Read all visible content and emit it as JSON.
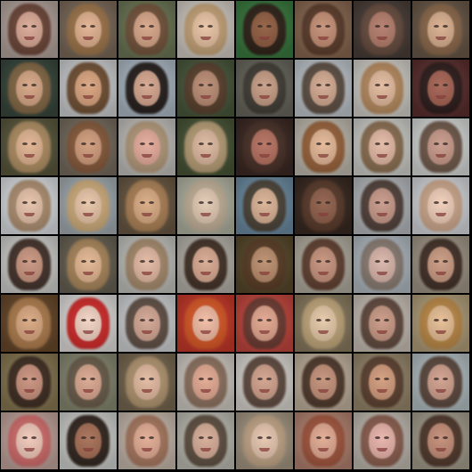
{
  "grid": {
    "rows": 8,
    "cols": 8,
    "tiles": [
      {
        "bg": "#b9a9a1",
        "hair": "#6b4133",
        "skin": "#d9a794"
      },
      {
        "bg": "#7f6e5c",
        "hair": "#a2774a",
        "skin": "#e1b08d"
      },
      {
        "bg": "#6f7a58",
        "hair": "#75533a",
        "skin": "#d6a486"
      },
      {
        "bg": "#d8d2c9",
        "hair": "#c9a476",
        "skin": "#e8c2a2"
      },
      {
        "bg": "#3b7d41",
        "hair": "#2d1d15",
        "skin": "#8e5a3d"
      },
      {
        "bg": "#8c6b53",
        "hair": "#5a3a28",
        "skin": "#c48d73"
      },
      {
        "bg": "#4c403a",
        "hair": "#6a4d3f",
        "skin": "#b27a68"
      },
      {
        "bg": "#6c5b4a",
        "hair": "#8f6a4b",
        "skin": "#d8ad8c"
      },
      {
        "bg": "#3a4a3e",
        "hair": "#8a6a46",
        "skin": "#d5a482"
      },
      {
        "bg": "#d4d6d8",
        "hair": "#6e4a2c",
        "skin": "#d9a27c"
      },
      {
        "bg": "#b3c0cc",
        "hair": "#1e1714",
        "skin": "#d4a48c"
      },
      {
        "bg": "#4b5a3e",
        "hair": "#5b3f2c",
        "skin": "#b98a71"
      },
      {
        "bg": "#6a6a60",
        "hair": "#3f3a33",
        "skin": "#c59b82"
      },
      {
        "bg": "#c6cdd3",
        "hair": "#5a4a3d",
        "skin": "#d2a88f"
      },
      {
        "bg": "#d9d6cf",
        "hair": "#b98a5b",
        "skin": "#e2b99c"
      },
      {
        "bg": "#5e3030",
        "hair": "#2a1b1a",
        "skin": "#a35f4f"
      },
      {
        "bg": "#5c5a3e",
        "hair": "#b89467",
        "skin": "#e0b28f"
      },
      {
        "bg": "#7a6f61",
        "hair": "#8a5a3a",
        "skin": "#d09a79"
      },
      {
        "bg": "#c9c7c2",
        "hair": "#b79b7a",
        "skin": "#e4a999"
      },
      {
        "bg": "#4a5738",
        "hair": "#c2a67c",
        "skin": "#dcb79d"
      },
      {
        "bg": "#3e2a25",
        "hair": "#4a3127",
        "skin": "#b36d5c"
      },
      {
        "bg": "#c7c1b5",
        "hair": "#9a6035",
        "skin": "#e3b694"
      },
      {
        "bg": "#d6d7d2",
        "hair": "#8b6c4d",
        "skin": "#e3b7a3"
      },
      {
        "bg": "#dfe2e0",
        "hair": "#6c5344",
        "skin": "#c79888"
      },
      {
        "bg": "#e3e7ea",
        "hair": "#b08e6d",
        "skin": "#e6c1a7"
      },
      {
        "bg": "#a9b2b7",
        "hair": "#d6b07a",
        "skin": "#e8c4a6"
      },
      {
        "bg": "#6d5b45",
        "hair": "#b48658",
        "skin": "#d8a981"
      },
      {
        "bg": "#b7b9a7",
        "hair": "#c7b49b",
        "skin": "#e2c9b2"
      },
      {
        "bg": "#6f8fa6",
        "hair": "#4b4033",
        "skin": "#d8b092"
      },
      {
        "bg": "#3a2a22",
        "hair": "#5b3b2a",
        "skin": "#8d5c47"
      },
      {
        "bg": "#bcc0c3",
        "hair": "#4d3b33",
        "skin": "#c69787"
      },
      {
        "bg": "#dcdfe3",
        "hair": "#d2a98b",
        "skin": "#f0cdb8"
      },
      {
        "bg": "#d7d8d4",
        "hair": "#3d2a22",
        "skin": "#c8937d"
      },
      {
        "bg": "#6b6455",
        "hair": "#b18b5d",
        "skin": "#e2b58f"
      },
      {
        "bg": "#c8c8c4",
        "hair": "#a98a6a",
        "skin": "#e2b7a0"
      },
      {
        "bg": "#bcb7af",
        "hair": "#3d2b20",
        "skin": "#d7a78e"
      },
      {
        "bg": "#5a4a2c",
        "hair": "#5a3c24",
        "skin": "#b98b6a"
      },
      {
        "bg": "#b8b2a5",
        "hair": "#5d3a2a",
        "skin": "#c4907a"
      },
      {
        "bg": "#b7c0c8",
        "hair": "#8a7b70",
        "skin": "#d8b3a7"
      },
      {
        "bg": "#a69b8b",
        "hair": "#3d2b22",
        "skin": "#c8987f"
      },
      {
        "bg": "#6b4a2b",
        "hair": "#b5814f",
        "skin": "#d9a67e"
      },
      {
        "bg": "#e7e5e2",
        "hair": "#d52020",
        "skin": "#f2d2c2"
      },
      {
        "bg": "#d7d9dc",
        "hair": "#5c4a3f",
        "skin": "#d2a491"
      },
      {
        "bg": "#cc3a2a",
        "hair": "#e05a25",
        "skin": "#f1b9a1"
      },
      {
        "bg": "#c8493f",
        "hair": "#6a3b31",
        "skin": "#e1a48c"
      },
      {
        "bg": "#8d7e62",
        "hair": "#c9ad7f",
        "skin": "#e5c7a6"
      },
      {
        "bg": "#cfc7bd",
        "hair": "#5d4438",
        "skin": "#c89782"
      },
      {
        "bg": "#b7a37e",
        "hair": "#c08a45",
        "skin": "#e5bc91"
      },
      {
        "bg": "#8b7a54",
        "hair": "#3b291f",
        "skin": "#c98f7b"
      },
      {
        "bg": "#8a8c74",
        "hair": "#6a5b49",
        "skin": "#d9a58d"
      },
      {
        "bg": "#7a6a52",
        "hair": "#b99b74",
        "skin": "#e2b89e"
      },
      {
        "bg": "#d7d1c9",
        "hair": "#8c6f5b",
        "skin": "#e2a78f"
      },
      {
        "bg": "#e2ddd7",
        "hair": "#5b4539",
        "skin": "#d1a08a"
      },
      {
        "bg": "#c7b7a3",
        "hair": "#4a3326",
        "skin": "#c38f77"
      },
      {
        "bg": "#9a8a6e",
        "hair": "#5b3e2d",
        "skin": "#d29a7a"
      },
      {
        "bg": "#b9c6c9",
        "hair": "#594337",
        "skin": "#cf9e8b"
      },
      {
        "bg": "#c7a9a0",
        "hair": "#d56a6a",
        "skin": "#f0c7b8"
      },
      {
        "bg": "#d6d8d4",
        "hair": "#2a1c15",
        "skin": "#a56c52"
      },
      {
        "bg": "#cdbfb2",
        "hair": "#a9765b",
        "skin": "#e1aa92"
      },
      {
        "bg": "#c3c2b8",
        "hair": "#5b4a3b",
        "skin": "#d6ab96"
      },
      {
        "bg": "#a99b86",
        "hair": "#c8a98a",
        "skin": "#e6c5ae"
      },
      {
        "bg": "#b78673",
        "hair": "#a4543b",
        "skin": "#e1a890"
      },
      {
        "bg": "#c6c0b6",
        "hair": "#8a5a4a",
        "skin": "#e7b1a8"
      },
      {
        "bg": "#a8a290",
        "hair": "#4d3326",
        "skin": "#c28b75"
      }
    ]
  }
}
